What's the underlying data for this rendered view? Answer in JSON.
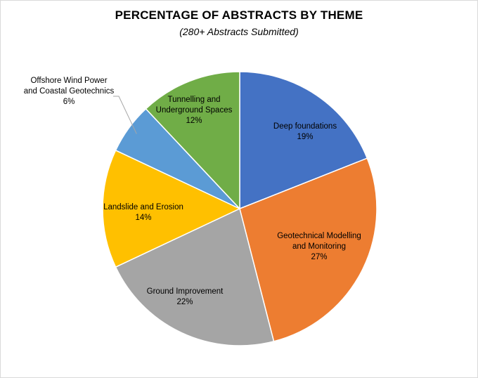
{
  "title": "PERCENTAGE OF ABSTRACTS BY THEME",
  "subtitle": "(280+ Abstracts Submitted)",
  "chart_data": {
    "type": "pie",
    "title": "PERCENTAGE OF ABSTRACTS BY THEME",
    "subtitle": "(280+ Abstracts Submitted)",
    "slices": [
      {
        "label": "Deep foundations",
        "value": 19,
        "value_label": "19%",
        "color": "#4472C4"
      },
      {
        "label": "Geotechnical Modelling and Monitoring",
        "value": 27,
        "value_label": "27%",
        "color": "#ED7D31"
      },
      {
        "label": "Ground Improvement",
        "value": 22,
        "value_label": "22%",
        "color": "#A5A5A5"
      },
      {
        "label": "Landslide and Erosion",
        "value": 14,
        "value_label": "14%",
        "color": "#FFC000"
      },
      {
        "label": "Offshore Wind Power and Coastal Geotechnics",
        "value": 6,
        "value_label": "6%",
        "color": "#5B9BD5"
      },
      {
        "label": "Tunnelling and Underground Spaces",
        "value": 12,
        "value_label": "12%",
        "color": "#70AD47"
      }
    ],
    "start_angle": "12 o'clock, clockwise",
    "legend": "none (data labels on slices)"
  }
}
